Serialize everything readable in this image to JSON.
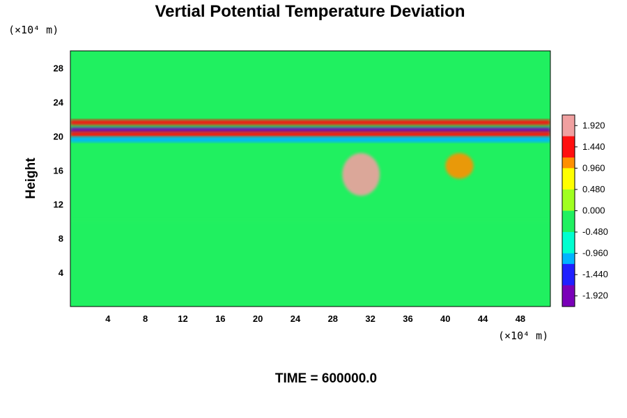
{
  "chart_data": {
    "type": "heatmap",
    "title": "Vertial Potential Temperature Deviation",
    "ylabel": "Height",
    "xlabel": "",
    "x_unit_label": "(×10⁴ m)",
    "y_unit_label": "(×10⁴ m)",
    "xlim": [
      0,
      51.2
    ],
    "ylim": [
      0,
      30
    ],
    "x_ticks": [
      4,
      8,
      12,
      16,
      20,
      24,
      28,
      32,
      36,
      40,
      44,
      48
    ],
    "y_ticks": [
      4,
      8,
      12,
      16,
      20,
      24,
      28
    ],
    "colorbar": {
      "range": [
        -2.16,
        2.16
      ],
      "tick_labels": [
        "1.920",
        "1.440",
        "0.960",
        "0.480",
        "0.000",
        "-0.480",
        "-0.960",
        "-1.440",
        "-1.920"
      ],
      "tick_values": [
        1.92,
        1.44,
        0.96,
        0.48,
        0.0,
        -0.48,
        -0.96,
        -1.44,
        -1.92
      ]
    },
    "field_features": [
      {
        "name": "upper warm band",
        "x": [
          0,
          51.2
        ],
        "y_center": 21.6,
        "value": 1.4
      },
      {
        "name": "cold band",
        "x": [
          0,
          51.2
        ],
        "y_center": 20.7,
        "value": -1.9
      },
      {
        "name": "warm band",
        "x": [
          0,
          51.2
        ],
        "y_center": 20.2,
        "value": 1.6
      },
      {
        "name": "lower cold band",
        "x": [
          0,
          51.2
        ],
        "y_center": 19.6,
        "value": -1.0
      },
      {
        "name": "convective plume",
        "x": [
          29,
          33
        ],
        "y": [
          13,
          18
        ],
        "value": 1.9
      },
      {
        "name": "warm blobs",
        "x": [
          40,
          43
        ],
        "y": [
          15,
          18
        ],
        "value": 1.2
      },
      {
        "name": "cool layer",
        "x": [
          0,
          51.2
        ],
        "y_center": 10,
        "value": -0.3
      },
      {
        "name": "background",
        "x": [
          0,
          51.2
        ],
        "y": [
          0,
          30
        ],
        "value": 0.0
      }
    ]
  },
  "footer": {
    "time_label": "TIME = 600000.0"
  },
  "colors": {
    "scale": [
      "#7a00b8",
      "#2020ff",
      "#00b4ff",
      "#00ffd0",
      "#20f060",
      "#a0ff20",
      "#ffff00",
      "#ff9000",
      "#ff1010",
      "#f0a0a0"
    ]
  }
}
